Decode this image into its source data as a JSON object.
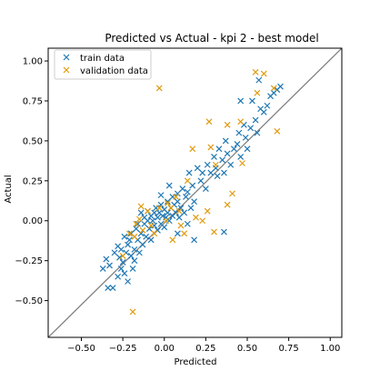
{
  "chart_data": {
    "type": "scatter",
    "title": "Predicted vs Actual - kpi 2 - best model",
    "xlabel": "Predicted",
    "ylabel": "Actual",
    "xlim": [
      -0.7,
      1.07
    ],
    "ylim": [
      -0.73,
      1.08
    ],
    "xticks": [
      -0.5,
      -0.25,
      0.0,
      0.25,
      0.5,
      0.75,
      1.0
    ],
    "xtick_labels": [
      "−0.50",
      "−0.25",
      "0.00",
      "0.25",
      "0.50",
      "0.75",
      "1.00"
    ],
    "yticks": [
      -0.5,
      -0.25,
      0.0,
      0.25,
      0.5,
      0.75,
      1.0
    ],
    "ytick_labels": [
      "−0.50",
      "−0.25",
      "0.00",
      "0.25",
      "0.50",
      "0.75",
      "1.00"
    ],
    "grid": false,
    "legend_position": "top-left",
    "reference_line": {
      "from": [
        -0.7,
        -0.73
      ],
      "to": [
        1.07,
        1.08
      ],
      "color": "#808080"
    },
    "series": [
      {
        "name": "train data",
        "color": "#1f77b4",
        "marker": "x",
        "points": [
          [
            -0.37,
            -0.3
          ],
          [
            -0.35,
            -0.24
          ],
          [
            -0.33,
            -0.28
          ],
          [
            -0.31,
            -0.42
          ],
          [
            -0.34,
            -0.42
          ],
          [
            -0.3,
            -0.2
          ],
          [
            -0.28,
            -0.35
          ],
          [
            -0.28,
            -0.16
          ],
          [
            -0.27,
            -0.23
          ],
          [
            -0.26,
            -0.3
          ],
          [
            -0.26,
            -0.18
          ],
          [
            -0.25,
            -0.26
          ],
          [
            -0.24,
            -0.1
          ],
          [
            -0.24,
            -0.33
          ],
          [
            -0.23,
            -0.2
          ],
          [
            -0.22,
            -0.38
          ],
          [
            -0.22,
            -0.15
          ],
          [
            -0.21,
            -0.12
          ],
          [
            -0.2,
            -0.22
          ],
          [
            -0.2,
            -0.08
          ],
          [
            -0.19,
            -0.3
          ],
          [
            -0.18,
            -0.25
          ],
          [
            -0.18,
            -0.18
          ],
          [
            -0.17,
            -0.05
          ],
          [
            -0.16,
            -0.12
          ],
          [
            -0.16,
            -0.02
          ],
          [
            -0.15,
            -0.2
          ],
          [
            -0.14,
            -0.08
          ],
          [
            -0.14,
            0.05
          ],
          [
            -0.13,
            -0.15
          ],
          [
            -0.12,
            -0.02
          ],
          [
            -0.12,
            0.02
          ],
          [
            -0.11,
            -0.1
          ],
          [
            -0.1,
            0.0
          ],
          [
            -0.1,
            0.06
          ],
          [
            -0.09,
            -0.05
          ],
          [
            -0.08,
            0.03
          ],
          [
            -0.08,
            -0.12
          ],
          [
            -0.07,
            0.0
          ],
          [
            -0.06,
            0.05
          ],
          [
            -0.06,
            -0.03
          ],
          [
            -0.05,
            0.08
          ],
          [
            -0.04,
            0.02
          ],
          [
            -0.04,
            -0.06
          ],
          [
            -0.03,
            0.05
          ],
          [
            -0.02,
            0.1
          ],
          [
            -0.02,
            -0.02
          ],
          [
            -0.01,
            0.03
          ],
          [
            0.0,
            0.07
          ],
          [
            0.0,
            -0.04
          ],
          [
            0.01,
            0.02
          ],
          [
            0.02,
            0.12
          ],
          [
            0.02,
            0.05
          ],
          [
            0.03,
            0.0
          ],
          [
            0.04,
            0.08
          ],
          [
            0.05,
            0.15
          ],
          [
            0.05,
            0.03
          ],
          [
            0.06,
            0.1
          ],
          [
            0.07,
            0.05
          ],
          [
            0.08,
            0.17
          ],
          [
            0.08,
            0.12
          ],
          [
            0.09,
            0.02
          ],
          [
            0.1,
            0.08
          ],
          [
            0.11,
            0.2
          ],
          [
            0.12,
            0.05
          ],
          [
            0.13,
            0.15
          ],
          [
            0.14,
            0.18
          ],
          [
            0.15,
            0.3
          ],
          [
            0.16,
            0.08
          ],
          [
            0.17,
            0.22
          ],
          [
            0.18,
            0.12
          ],
          [
            0.18,
            -0.12
          ],
          [
            0.2,
            0.33
          ],
          [
            0.22,
            0.25
          ],
          [
            0.23,
            0.3
          ],
          [
            0.25,
            0.2
          ],
          [
            0.26,
            0.35
          ],
          [
            0.28,
            0.3
          ],
          [
            0.3,
            0.4
          ],
          [
            0.31,
            0.33
          ],
          [
            0.32,
            0.28
          ],
          [
            0.33,
            0.45
          ],
          [
            0.35,
            0.38
          ],
          [
            0.36,
            0.3
          ],
          [
            0.37,
            0.5
          ],
          [
            0.38,
            0.42
          ],
          [
            0.4,
            0.35
          ],
          [
            0.42,
            0.45
          ],
          [
            0.44,
            0.48
          ],
          [
            0.45,
            0.55
          ],
          [
            0.46,
            0.4
          ],
          [
            0.48,
            0.6
          ],
          [
            0.49,
            0.52
          ],
          [
            0.5,
            0.45
          ],
          [
            0.52,
            0.58
          ],
          [
            0.53,
            0.75
          ],
          [
            0.55,
            0.63
          ],
          [
            0.56,
            0.55
          ],
          [
            0.58,
            0.7
          ],
          [
            0.6,
            0.68
          ],
          [
            0.62,
            0.72
          ],
          [
            0.64,
            0.78
          ],
          [
            0.66,
            0.8
          ],
          [
            0.68,
            0.82
          ],
          [
            0.7,
            0.84
          ],
          [
            0.46,
            0.75
          ],
          [
            0.57,
            0.88
          ],
          [
            0.36,
            -0.07
          ],
          [
            0.14,
            -0.02
          ],
          [
            0.08,
            -0.08
          ],
          [
            -0.02,
            0.16
          ],
          [
            0.03,
            0.22
          ]
        ]
      },
      {
        "name": "validation data",
        "color": "#e09b0e",
        "marker": "x",
        "points": [
          [
            -0.19,
            -0.57
          ],
          [
            -0.03,
            0.83
          ],
          [
            0.55,
            0.93
          ],
          [
            0.6,
            0.92
          ],
          [
            0.66,
            0.83
          ],
          [
            0.56,
            0.8
          ],
          [
            0.68,
            0.56
          ],
          [
            0.46,
            0.62
          ],
          [
            0.38,
            0.6
          ],
          [
            0.27,
            0.62
          ],
          [
            0.17,
            0.45
          ],
          [
            0.47,
            0.36
          ],
          [
            0.38,
            0.1
          ],
          [
            0.31,
            0.35
          ],
          [
            0.26,
            0.06
          ],
          [
            0.23,
            0.0
          ],
          [
            0.3,
            -0.07
          ],
          [
            0.14,
            0.25
          ],
          [
            0.19,
            0.02
          ],
          [
            0.07,
            0.15
          ],
          [
            0.09,
            0.06
          ],
          [
            0.1,
            -0.03
          ],
          [
            0.04,
            0.08
          ],
          [
            0.01,
            0.0
          ],
          [
            -0.03,
            0.08
          ],
          [
            -0.08,
            -0.03
          ],
          [
            -0.1,
            0.06
          ],
          [
            -0.13,
            -0.06
          ],
          [
            -0.15,
            0.01
          ],
          [
            -0.18,
            -0.1
          ],
          [
            -0.21,
            -0.08
          ],
          [
            -0.25,
            -0.22
          ],
          [
            -0.14,
            0.09
          ],
          [
            0.02,
            0.11
          ],
          [
            0.41,
            0.17
          ],
          [
            0.28,
            0.46
          ],
          [
            -0.06,
            -0.08
          ],
          [
            0.12,
            -0.08
          ],
          [
            0.05,
            -0.12
          ],
          [
            -0.17,
            -0.02
          ]
        ]
      }
    ]
  }
}
